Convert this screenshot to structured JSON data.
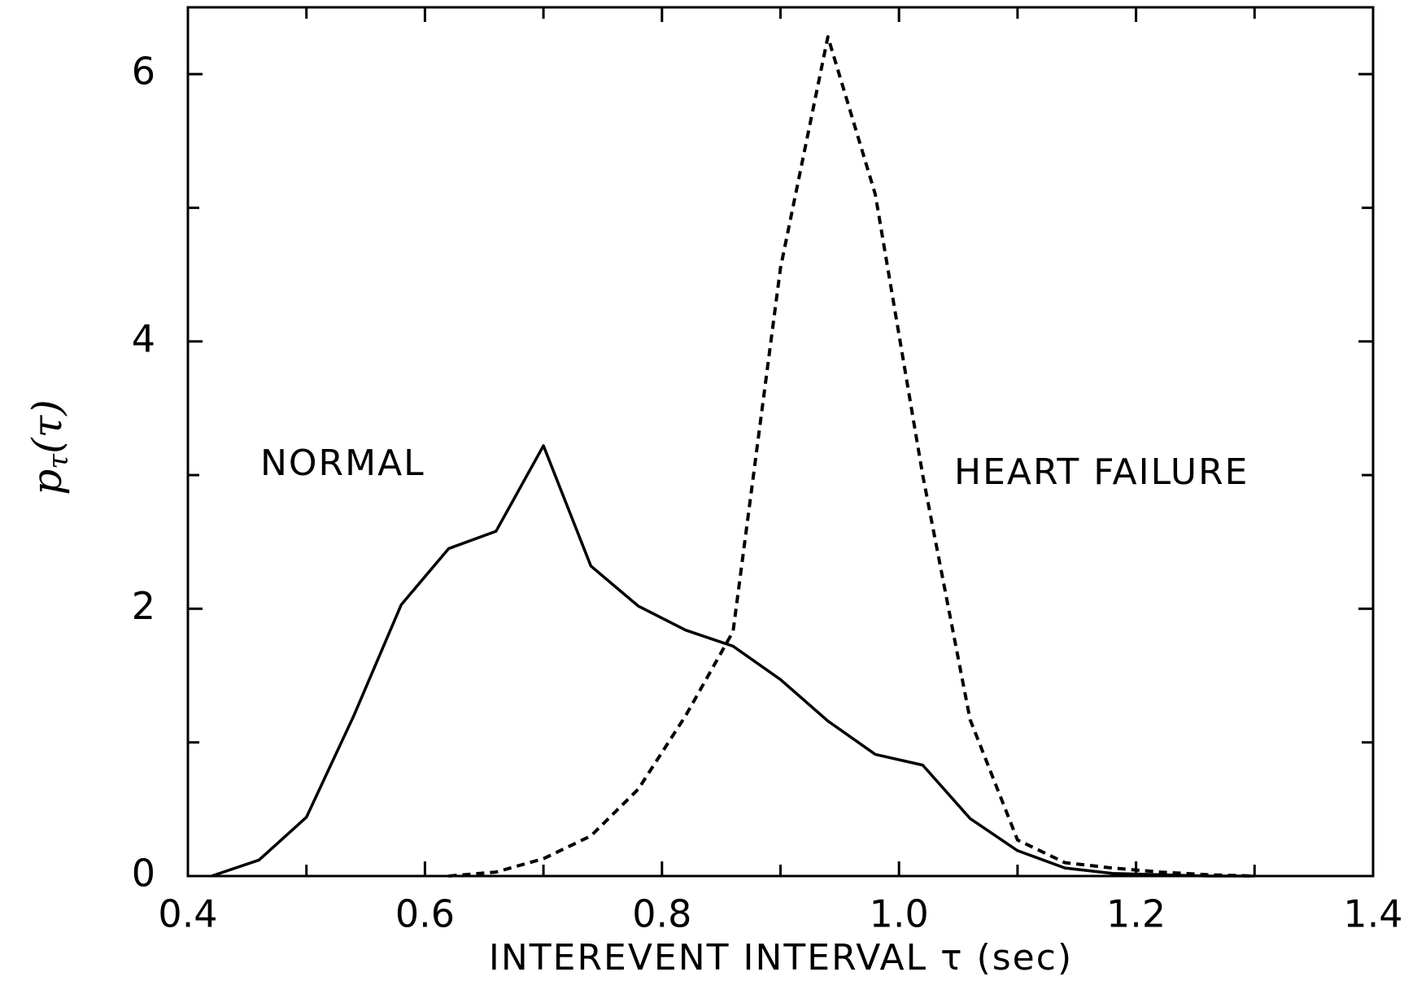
{
  "chart_data": {
    "type": "line",
    "xlabel": "INTEREVENT INTERVAL τ (sec)",
    "ylabel_parts": [
      "p",
      "τ",
      "(τ)"
    ],
    "xlim": [
      0.4,
      1.4
    ],
    "ylim": [
      0,
      6.5
    ],
    "xticks": [
      0.4,
      0.6,
      0.8,
      {
        "value": 1,
        "label": "1.0"
      },
      1.2,
      1.4
    ],
    "yticks": [
      0,
      2,
      4,
      6
    ],
    "xminor": [
      0.5,
      0.7,
      0.9,
      1.1,
      1.3
    ],
    "yminor": [
      1,
      3,
      5
    ],
    "series": [
      {
        "name": "NORMAL",
        "color": "#000000",
        "dashed": false,
        "x": [
          0.42,
          0.46,
          0.5,
          0.54,
          0.58,
          0.62,
          0.66,
          0.7,
          0.74,
          0.78,
          0.82,
          0.86,
          0.9,
          0.94,
          0.98,
          1.02,
          1.06,
          1.1,
          1.14,
          1.18,
          1.22,
          1.26,
          1.3
        ],
        "values": [
          0,
          0.12,
          0.44,
          1.2,
          2.03,
          2.45,
          2.58,
          3.22,
          2.32,
          2.02,
          1.84,
          1.72,
          1.47,
          1.16,
          0.91,
          0.83,
          0.43,
          0.19,
          0.06,
          0.02,
          0.01,
          0,
          0
        ]
      },
      {
        "name": "HEART FAILURE",
        "color": "#000000",
        "dashed": true,
        "x": [
          0.62,
          0.66,
          0.7,
          0.74,
          0.78,
          0.82,
          0.86,
          0.9,
          0.94,
          0.98,
          1.02,
          1.06,
          1.1,
          1.14,
          1.18,
          1.22,
          1.26,
          1.3
        ],
        "values": [
          0,
          0.03,
          0.13,
          0.3,
          0.65,
          1.2,
          1.83,
          4.55,
          6.28,
          5.1,
          3.0,
          1.17,
          0.27,
          0.1,
          0.06,
          0.03,
          0.01,
          0
        ]
      }
    ]
  }
}
